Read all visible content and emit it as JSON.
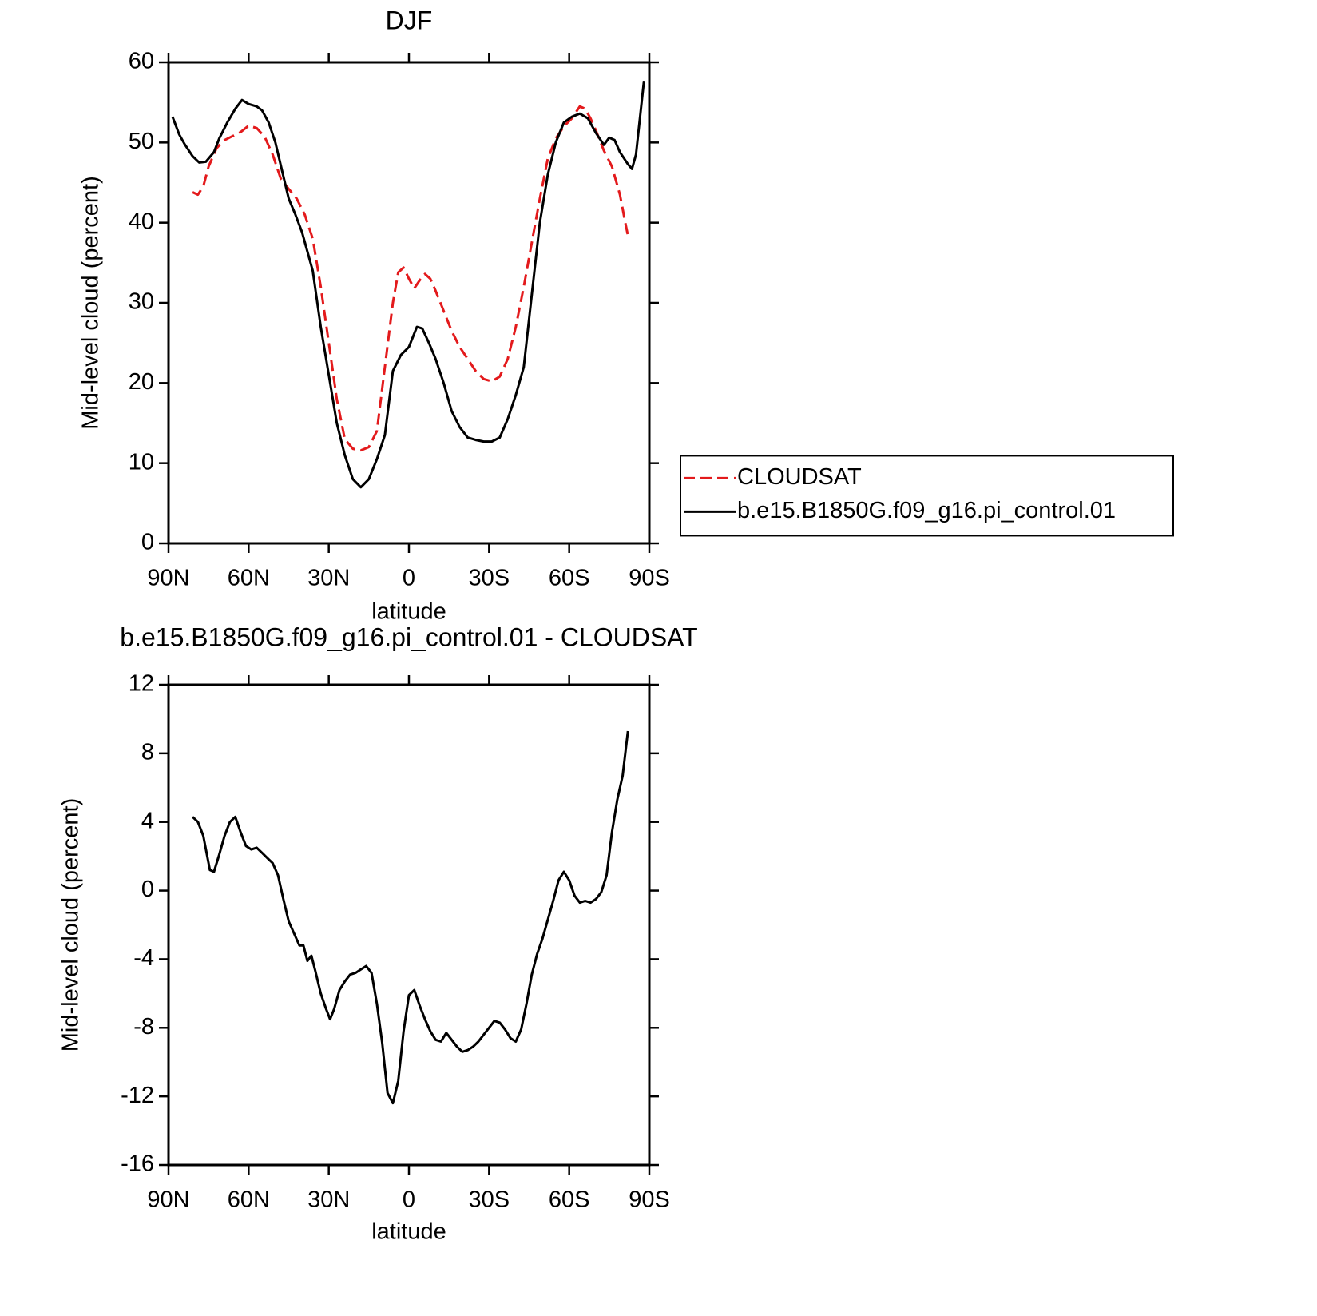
{
  "chart_data": [
    {
      "type": "line",
      "title": "DJF",
      "xlabel": "latitude",
      "ylabel": "Mid-level cloud (percent)",
      "xlim": [
        90,
        -90
      ],
      "xticks": [
        {
          "value": 90,
          "label": "90N"
        },
        {
          "value": 60,
          "label": "60N"
        },
        {
          "value": 30,
          "label": "30N"
        },
        0,
        {
          "value": -30,
          "label": "30S"
        },
        {
          "value": -60,
          "label": "60S"
        },
        {
          "value": -90,
          "label": "90S"
        }
      ],
      "ylim": [
        0,
        60
      ],
      "yticks": [
        0,
        10,
        20,
        30,
        40,
        50,
        60
      ],
      "legend": "right",
      "series": [
        {
          "name": "CLOUDSAT",
          "color": "#e31a1c",
          "style": "dashed",
          "x": [
            81,
            79,
            77,
            75,
            72,
            69,
            66,
            63,
            60,
            57,
            54,
            51,
            48,
            45,
            42,
            39,
            36,
            33,
            30,
            27,
            24,
            21,
            18,
            15,
            12,
            9,
            6,
            4,
            2,
            0,
            -2,
            -4,
            -6,
            -8,
            -10,
            -13,
            -16,
            -19,
            -22,
            -25,
            -28,
            -31,
            -34,
            -37,
            -40,
            -43,
            -46,
            -49,
            -52,
            -55,
            -58,
            -61,
            -64,
            -66,
            -68,
            -70,
            -73,
            -76,
            -79,
            -81,
            -82
          ],
          "values": [
            43.8,
            43.5,
            44.5,
            47,
            49.3,
            50.3,
            50.8,
            51.3,
            52.1,
            51.8,
            50.7,
            48.5,
            45.5,
            44.2,
            43,
            41,
            38,
            32,
            25,
            18,
            13,
            11.8,
            11.6,
            12,
            14,
            22,
            30,
            33.8,
            34.4,
            33,
            31.8,
            32.8,
            33.6,
            33,
            31.5,
            29,
            26.5,
            24.5,
            23,
            21.5,
            20.5,
            20.2,
            20.8,
            23,
            27,
            32,
            37.5,
            43,
            48,
            50.5,
            52,
            53,
            54.5,
            54.2,
            53,
            51.5,
            49,
            47,
            43.5,
            40,
            38.4
          ]
        },
        {
          "name": "b.e15.B1850G.f09_g16.pi_control.01",
          "color": "#000000",
          "style": "solid",
          "x": [
            88.5,
            86,
            84,
            81,
            78.5,
            76,
            73,
            71,
            68,
            65,
            62.5,
            60,
            57,
            55,
            52.5,
            50,
            47.5,
            45,
            42.5,
            40,
            36,
            33,
            30,
            27,
            24,
            21,
            18,
            15,
            12,
            9,
            6,
            3,
            0,
            -3,
            -5,
            -7.5,
            -10,
            -13,
            -16,
            -19,
            -22,
            -25,
            -28,
            -31,
            -34,
            -37,
            -40,
            -43,
            -46,
            -49,
            -52,
            -55,
            -58,
            -61,
            -64,
            -67,
            -70,
            -73,
            -75,
            -77,
            -79,
            -82,
            -83.5,
            -85,
            -88
          ],
          "values": [
            53.2,
            51,
            49.8,
            48.3,
            47.5,
            47.6,
            48.8,
            50.5,
            52.5,
            54.2,
            55.3,
            54.8,
            54.5,
            54,
            52.5,
            50,
            46.5,
            43,
            41,
            38.8,
            34,
            27,
            21,
            15,
            11,
            8,
            7,
            8,
            10.5,
            13.5,
            21.5,
            23.5,
            24.5,
            27,
            26.8,
            25,
            23,
            20,
            16.5,
            14.5,
            13.2,
            12.9,
            12.7,
            12.7,
            13.2,
            15.5,
            18.5,
            22,
            31,
            40,
            46,
            50,
            52.5,
            53.2,
            53.6,
            53,
            51.2,
            49.7,
            50.6,
            50.3,
            48.8,
            47.3,
            46.7,
            48.5,
            57.7
          ]
        }
      ]
    },
    {
      "type": "line",
      "title": "b.e15.B1850G.f09_g16.pi_control.01 - CLOUDSAT",
      "xlabel": "latitude",
      "ylabel": "Mid-level cloud (percent)",
      "xlim": [
        90,
        -90
      ],
      "xticks": [
        {
          "value": 90,
          "label": "90N"
        },
        {
          "value": 60,
          "label": "60N"
        },
        {
          "value": 30,
          "label": "30N"
        },
        0,
        {
          "value": -30,
          "label": "30S"
        },
        {
          "value": -60,
          "label": "60S"
        },
        {
          "value": -90,
          "label": "90S"
        }
      ],
      "ylim": [
        -16,
        12
      ],
      "yticks": [
        -16,
        -12,
        -8,
        -4,
        0,
        4,
        8,
        12
      ],
      "series": [
        {
          "color": "#000000",
          "style": "solid",
          "x": [
            81,
            79,
            77,
            74.5,
            73,
            71,
            69,
            67,
            65,
            63,
            61,
            59,
            57,
            55,
            53,
            51,
            49,
            47,
            45,
            43,
            41,
            39.5,
            38,
            36.5,
            35,
            33,
            31,
            29.5,
            28,
            26,
            24,
            22,
            20,
            18,
            16,
            14,
            12,
            10,
            8,
            6,
            4,
            2,
            0,
            -2,
            -4,
            -6,
            -8,
            -10,
            -12,
            -14,
            -16,
            -18,
            -20,
            -22,
            -24,
            -26,
            -28,
            -30,
            -32,
            -34,
            -36,
            -38,
            -40,
            -42,
            -44,
            -46,
            -48,
            -50,
            -52,
            -54,
            -56,
            -58,
            -60,
            -62,
            -64,
            -66,
            -68,
            -70,
            -72,
            -74,
            -76,
            -78,
            -80,
            -82
          ],
          "values": [
            4.3,
            4.0,
            3.2,
            1.2,
            1.1,
            2.1,
            3.2,
            4.0,
            4.3,
            3.4,
            2.6,
            2.4,
            2.5,
            2.2,
            1.9,
            1.6,
            0.9,
            -0.5,
            -1.8,
            -2.5,
            -3.2,
            -3.2,
            -4.1,
            -3.8,
            -4.7,
            -6.0,
            -6.9,
            -7.5,
            -6.9,
            -5.8,
            -5.3,
            -4.9,
            -4.8,
            -4.6,
            -4.4,
            -4.8,
            -6.6,
            -8.9,
            -11.8,
            -12.4,
            -11.1,
            -8.2,
            -6.1,
            -5.8,
            -6.7,
            -7.5,
            -8.2,
            -8.7,
            -8.8,
            -8.3,
            -8.7,
            -9.1,
            -9.4,
            -9.3,
            -9.1,
            -8.8,
            -8.4,
            -8.0,
            -7.6,
            -7.7,
            -8.1,
            -8.6,
            -8.8,
            -8.1,
            -6.6,
            -4.9,
            -3.7,
            -2.8,
            -1.7,
            -0.6,
            0.6,
            1.1,
            0.6,
            -0.3,
            -0.7,
            -0.6,
            -0.7,
            -0.5,
            -0.1,
            0.9,
            3.4,
            5.3,
            6.7,
            9.3
          ]
        }
      ]
    }
  ]
}
